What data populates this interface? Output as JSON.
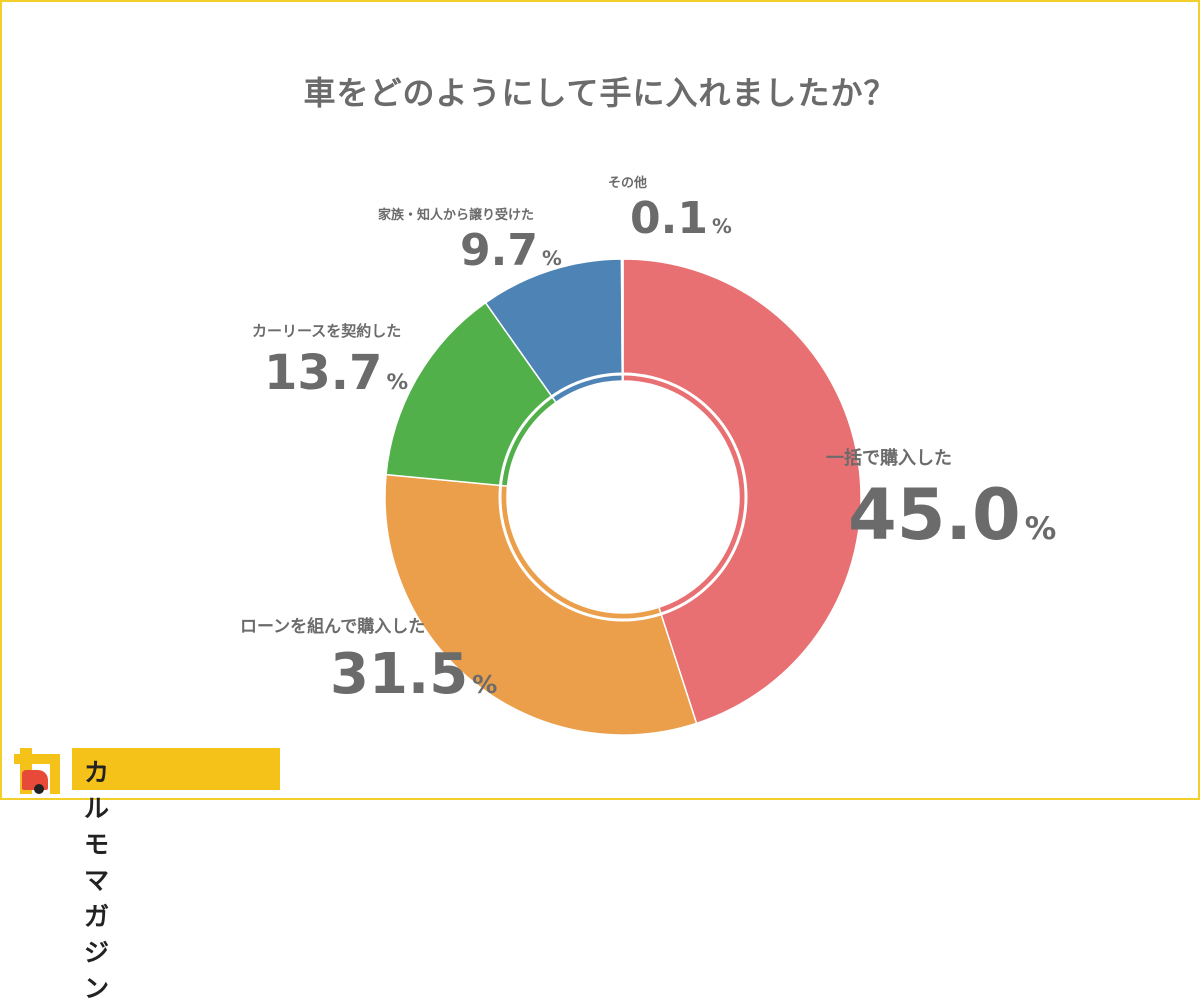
{
  "chart_data": {
    "type": "pie",
    "donut": true,
    "title": "車をどのようにして手に入れましたか？",
    "unit": "%",
    "categories": [
      "一括で購入した",
      "ローンを組んで購入した",
      "カーリースを契約した",
      "家族・知人から譲り受けた",
      "その他"
    ],
    "values": [
      45.0,
      31.5,
      13.7,
      9.7,
      0.1
    ],
    "value_labels": [
      "45.0",
      "31.5",
      "13.7",
      "9.7",
      "0.1"
    ],
    "colors": [
      "#e87072",
      "#eb9f4b",
      "#52b04a",
      "#4e84b5",
      "#7a7a7a"
    ],
    "start": "top",
    "direction": "clockwise"
  },
  "logo": {
    "text": "カルモマガジン",
    "brand_color": "#f5c21a"
  },
  "border_color": "#f2cf2a"
}
